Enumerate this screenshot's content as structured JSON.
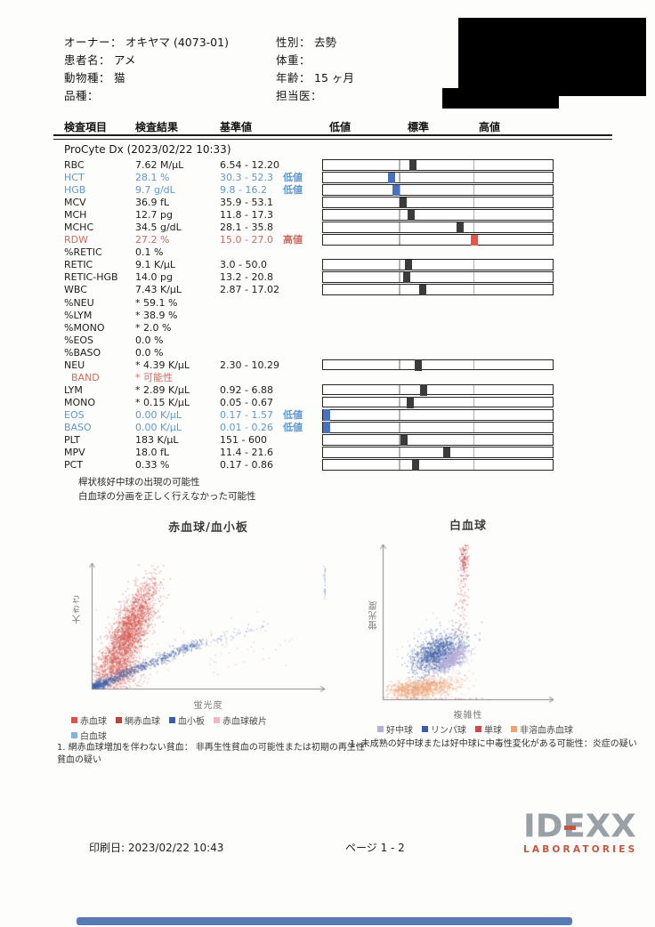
{
  "header": {
    "left": [
      {
        "label": "オーナー",
        "value": "オキヤマ (4073-01)"
      },
      {
        "label": "患者名",
        "value": "アメ"
      },
      {
        "label": "動物種",
        "value": "猫"
      },
      {
        "label": "品種",
        "value": ""
      }
    ],
    "right": [
      {
        "label": "性別",
        "value": "去勢"
      },
      {
        "label": "体重",
        "value": ""
      },
      {
        "label": "年齢",
        "value": "15 ヶ月"
      },
      {
        "label": "担当医",
        "value": ""
      }
    ]
  },
  "table": {
    "headers": {
      "item": "検査項目",
      "result": "検査結果",
      "range": "基準値",
      "low": "低値",
      "normal": "標準",
      "high": "高値"
    },
    "section_title": "ProCyte Dx (2023/02/22 10:33)",
    "rows": [
      {
        "name": "RBC",
        "result": "7.62 M/µL",
        "range": "6.54 - 12.20",
        "flag": "",
        "status": "normal",
        "bar": 0.392
      },
      {
        "name": "HCT",
        "result": "28.1 %",
        "range": "30.3 - 52.3",
        "flag": "低値",
        "status": "low",
        "bar": 0.3
      },
      {
        "name": "HGB",
        "result": "9.7 g/dL",
        "range": "9.8 - 16.2",
        "flag": "低値",
        "status": "low",
        "bar": 0.318
      },
      {
        "name": "MCV",
        "result": "36.9 fL",
        "range": "35.9 - 53.1",
        "flag": "",
        "status": "normal",
        "bar": 0.35
      },
      {
        "name": "MCH",
        "result": "12.7 pg",
        "range": "11.8 - 17.3",
        "flag": "",
        "status": "normal",
        "bar": 0.384
      },
      {
        "name": "MCHC",
        "result": "34.5 g/dL",
        "range": "28.1 - 35.8",
        "flag": "",
        "status": "normal",
        "bar": 0.599
      },
      {
        "name": "RDW",
        "result": "27.2 %",
        "range": "15.0 - 27.0",
        "flag": "高値",
        "status": "high",
        "bar": 0.66
      },
      {
        "name": "%RETIC",
        "result": "0.1 %",
        "range": "",
        "flag": "",
        "status": "normal",
        "bar": null
      },
      {
        "name": "RETIC",
        "result": "9.1 K/µL",
        "range": "3.0 - 50.0",
        "flag": "",
        "status": "normal",
        "bar": 0.372
      },
      {
        "name": "RETIC-HGB",
        "result": "14.0 pg",
        "range": "13.2 - 20.8",
        "flag": "",
        "status": "normal",
        "bar": 0.365
      },
      {
        "name": "WBC",
        "result": "7.43 K/µL",
        "range": "2.87 - 17.02",
        "flag": "",
        "status": "normal",
        "bar": 0.435
      },
      {
        "name": "%NEU",
        "result": "* 59.1 %",
        "range": "",
        "flag": "",
        "status": "normal",
        "bar": null
      },
      {
        "name": "%LYM",
        "result": "* 38.9 %",
        "range": "",
        "flag": "",
        "status": "normal",
        "bar": null
      },
      {
        "name": "%MONO",
        "result": "* 2.0 %",
        "range": "",
        "flag": "",
        "status": "normal",
        "bar": null
      },
      {
        "name": "%EOS",
        "result": "0.0 %",
        "range": "",
        "flag": "",
        "status": "normal",
        "bar": null
      },
      {
        "name": "%BASO",
        "result": "0.0 %",
        "range": "",
        "flag": "",
        "status": "normal",
        "bar": null
      },
      {
        "name": "NEU",
        "result": "* 4.39 K/µL",
        "range": "2.30 - 10.29",
        "flag": "",
        "status": "normal",
        "bar": 0.416
      },
      {
        "name": "BAND",
        "result": "* 可能性",
        "range": "",
        "flag": "",
        "status": "band",
        "bar": null,
        "indent": true
      },
      {
        "name": "LYM",
        "result": "* 2.89 K/µL",
        "range": "0.92 - 6.88",
        "flag": "",
        "status": "normal",
        "bar": 0.438
      },
      {
        "name": "MONO",
        "result": "* 0.15 K/µL",
        "range": "0.05 - 0.67",
        "flag": "",
        "status": "normal",
        "bar": 0.383
      },
      {
        "name": "EOS",
        "result": "0.00 K/µL",
        "range": "0.17 - 1.57",
        "flag": "低値",
        "status": "low",
        "bar": 0.012
      },
      {
        "name": "BASO",
        "result": "0.00 K/µL",
        "range": "0.01 - 0.26",
        "flag": "低値",
        "status": "low",
        "bar": 0.012
      },
      {
        "name": "PLT",
        "result": "183 K/µL",
        "range": "151 - 600",
        "flag": "",
        "status": "normal",
        "bar": 0.354
      },
      {
        "name": "MPV",
        "result": "18.0 fL",
        "range": "11.4 - 21.6",
        "flag": "",
        "status": "normal",
        "bar": 0.54
      },
      {
        "name": "PCT",
        "result": "0.33 %",
        "range": "0.17 - 0.86",
        "flag": "",
        "status": "normal",
        "bar": 0.406
      }
    ]
  },
  "notes": [
    "桿状核好中球の出現の可能性",
    "白血球の分画を正しく行えなかった可能性"
  ],
  "chart_data": [
    {
      "type": "scatter",
      "title": "赤血球/血小板",
      "xlabel": "蛍光度",
      "ylabel": "大きさ",
      "x_range": [
        0,
        1
      ],
      "y_range": [
        0,
        1
      ],
      "grid": false,
      "legend_position": "bottom",
      "legend": [
        {
          "label": "赤血球",
          "color": "#d4564d"
        },
        {
          "label": "網赤血球",
          "color": "#b5453f"
        },
        {
          "label": "血小板",
          "color": "#3d5ea6"
        },
        {
          "label": "赤血球破片",
          "color": "#ecb9c4"
        },
        {
          "label": "白血球",
          "color": "#85b2d8"
        }
      ],
      "clusters": [
        {
          "type": "gauss",
          "series": "赤血球",
          "color": "#d4564d",
          "alpha": 0.5,
          "n": 2600,
          "cx": 0.155,
          "cy": 0.45,
          "sx": 0.037,
          "sy": 0.2,
          "rot": -13
        },
        {
          "type": "gauss",
          "series": "赤血球",
          "color": "#d4564d",
          "alpha": 0.45,
          "n": 600,
          "cx": 0.11,
          "cy": 0.14,
          "sx": 0.05,
          "sy": 0.07,
          "rot": 0
        },
        {
          "type": "gauss",
          "series": "赤血球破片",
          "color": "#ecb9c4",
          "alpha": 0.35,
          "n": 130,
          "cx": 0.1,
          "cy": 0.08,
          "sx": 0.06,
          "sy": 0.05,
          "rot": 0
        },
        {
          "type": "gauss",
          "series": "赤血球",
          "color": "#d4564d",
          "alpha": 0.3,
          "n": 80,
          "cx": 0.4,
          "cy": 0.33,
          "sx": 0.22,
          "sy": 0.12,
          "rot": 0
        },
        {
          "type": "line",
          "series": "血小板",
          "color": "#3d5ea6",
          "alpha": 0.55,
          "n": 900,
          "x1": 0.005,
          "y1": 0.015,
          "x2": 0.46,
          "y2": 0.37,
          "sd": 0.016,
          "pow": 2.0
        },
        {
          "type": "line",
          "series": "血小板",
          "color": "#3d5ea6",
          "alpha": 0.4,
          "n": 70,
          "x1": 0.35,
          "y1": 0.3,
          "x2": 0.75,
          "y2": 0.52,
          "sd": 0.02,
          "pow": 1
        },
        {
          "type": "gauss",
          "series": "白血球",
          "color": "#85b2d8",
          "alpha": 0.6,
          "n": 40,
          "cx": 0.997,
          "cy": 0.87,
          "sx": 0.004,
          "sy": 0.085,
          "rot": 0,
          "clampx": true
        }
      ]
    },
    {
      "type": "scatter",
      "title": "白血球",
      "xlabel": "複雑性",
      "ylabel": "蛍光度",
      "x_range": [
        0,
        1
      ],
      "y_range": [
        0,
        1
      ],
      "grid": false,
      "legend_position": "bottom",
      "legend": [
        {
          "label": "好中球",
          "color": "#b9add8"
        },
        {
          "label": "リンパ球",
          "color": "#3d5ea6"
        },
        {
          "label": "単球",
          "color": "#c84a52"
        },
        {
          "label": "非溶血赤血球",
          "color": "#eba376"
        }
      ],
      "clusters": [
        {
          "type": "gauss",
          "series": "非溶血赤血球",
          "color": "#eba376",
          "alpha": 0.55,
          "n": 1100,
          "cx": 0.21,
          "cy": 0.07,
          "sx": 0.1,
          "sy": 0.03,
          "rot": 8
        },
        {
          "type": "gauss",
          "series": "非溶血赤血球",
          "color": "#eba376",
          "alpha": 0.35,
          "n": 120,
          "cx": 0.38,
          "cy": 0.1,
          "sx": 0.08,
          "sy": 0.03,
          "rot": 8
        },
        {
          "type": "gauss",
          "series": "リンパ球",
          "color": "#3d5ea6",
          "alpha": 0.5,
          "n": 1400,
          "cx": 0.32,
          "cy": 0.3,
          "sx": 0.085,
          "sy": 0.052,
          "rot": 35
        },
        {
          "type": "gauss",
          "series": "リンパ球",
          "color": "#3d5ea6",
          "alpha": 0.25,
          "n": 90,
          "cx": 0.3,
          "cy": 0.32,
          "sx": 0.16,
          "sy": 0.09,
          "rot": 35
        },
        {
          "type": "gauss",
          "series": "好中球",
          "color": "#b9add8",
          "alpha": 0.6,
          "n": 600,
          "cx": 0.4,
          "cy": 0.26,
          "sx": 0.055,
          "sy": 0.028,
          "rot": 35
        },
        {
          "type": "gauss",
          "series": "単球",
          "color": "#c84a52",
          "alpha": 0.6,
          "n": 130,
          "cx": 0.475,
          "cy": 0.92,
          "sx": 0.012,
          "sy": 0.07,
          "rot": 0
        },
        {
          "type": "gauss",
          "series": "単球",
          "color": "#c84a52",
          "alpha": 0.5,
          "n": 60,
          "cx": 0.465,
          "cy": 0.7,
          "sx": 0.015,
          "sy": 0.12,
          "rot": 0
        },
        {
          "type": "gauss",
          "series": "単球",
          "color": "#c84a52",
          "alpha": 0.4,
          "n": 25,
          "cx": 0.45,
          "cy": 0.5,
          "sx": 0.02,
          "sy": 0.1,
          "rot": 0
        },
        {
          "type": "line",
          "series": "単球",
          "color": "#c84a52",
          "alpha": 0.5,
          "n": 26,
          "x1": 0.05,
          "y1": 0.008,
          "x2": 0.62,
          "y2": 0.008,
          "sd": 0.003,
          "pow": 1
        }
      ]
    }
  ],
  "footnotes": {
    "left": "1. 網赤血球増加を伴わない貧血： 非再生性貧血の可能性または初期の再生性貧血の疑い",
    "right": "1. 未成熟の好中球または好中球に中毒性変化がある可能性：炎症の疑い"
  },
  "footer": {
    "print_date": "印刷日: 2023/02/22 10:43",
    "page": "ページ 1 - 2",
    "logo_text": "IDEXX",
    "logo_subtext": "LABORATORIES"
  },
  "colors": {
    "low_text": "#5f97cf",
    "high_text": "#d46a5f",
    "marker_normal": "#3b3b3b",
    "marker_low": "#4a71c0",
    "marker_high": "#e2574d"
  }
}
